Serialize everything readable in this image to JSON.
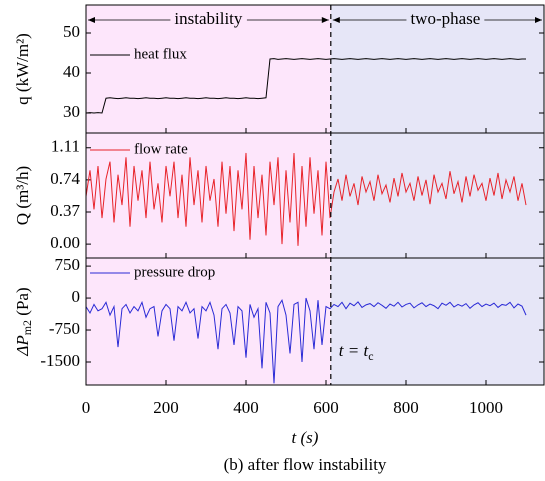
{
  "chart_data": [
    {
      "type": "line",
      "ylabel": "q (kW/m²)",
      "xlim": [
        0,
        1145
      ],
      "ylim": [
        25,
        57
      ],
      "yticks": [
        30,
        40,
        50
      ],
      "x": [
        0,
        10,
        20,
        30,
        40,
        50,
        60,
        70,
        80,
        90,
        100,
        110,
        120,
        130,
        140,
        150,
        160,
        170,
        180,
        190,
        200,
        210,
        220,
        230,
        240,
        250,
        260,
        270,
        280,
        290,
        300,
        310,
        320,
        330,
        340,
        350,
        360,
        370,
        380,
        390,
        400,
        410,
        420,
        430,
        440,
        450,
        460,
        470,
        480,
        490,
        500,
        510,
        520,
        530,
        540,
        550,
        560,
        570,
        580,
        590,
        600,
        610,
        620,
        630,
        640,
        650,
        660,
        670,
        680,
        690,
        700,
        710,
        720,
        730,
        740,
        750,
        760,
        770,
        780,
        790,
        800,
        810,
        820,
        830,
        840,
        850,
        860,
        870,
        880,
        890,
        900,
        910,
        920,
        930,
        940,
        950,
        960,
        970,
        980,
        990,
        1000,
        1010,
        1020,
        1030,
        1040,
        1050,
        1060,
        1070,
        1080,
        1090,
        1100
      ],
      "series": [
        {
          "name": "heat flux",
          "color": "#000000",
          "values": [
            30,
            30.1,
            30,
            30.1,
            30,
            33.7,
            33.8,
            33.7,
            33.6,
            33.7,
            33.8,
            33.7,
            33.7,
            33.6,
            33.7,
            33.8,
            33.7,
            33.7,
            33.6,
            33.7,
            33.8,
            33.7,
            33.7,
            33.6,
            33.7,
            33.8,
            33.7,
            33.7,
            33.6,
            33.7,
            33.8,
            33.7,
            33.7,
            33.6,
            33.7,
            33.8,
            33.7,
            33.7,
            33.6,
            33.7,
            33.8,
            33.7,
            33.7,
            33.6,
            33.7,
            33.8,
            43.5,
            43.6,
            43.4,
            43.5,
            43.6,
            43.5,
            43.4,
            43.5,
            43.6,
            43.5,
            43.4,
            43.5,
            43.6,
            43.5,
            43.4,
            43.5,
            43.6,
            43.5,
            43.4,
            43.5,
            43.6,
            43.5,
            43.4,
            43.5,
            43.6,
            43.5,
            43.4,
            43.5,
            43.6,
            43.5,
            43.4,
            43.5,
            43.6,
            43.5,
            43.4,
            43.5,
            43.6,
            43.5,
            43.4,
            43.5,
            43.6,
            43.5,
            43.4,
            43.5,
            43.6,
            43.5,
            43.4,
            43.5,
            43.6,
            43.5,
            43.4,
            43.5,
            43.6,
            43.5,
            43.4,
            43.5,
            43.6,
            43.5,
            43.4,
            43.5,
            43.6,
            43.5,
            43.4,
            43.5,
            43.5
          ]
        }
      ]
    },
    {
      "type": "line",
      "ylabel": "Q (m³/h)",
      "xlim": [
        0,
        1145
      ],
      "ylim": [
        -0.16,
        1.28
      ],
      "yticks": [
        {
          "value": 0,
          "label": "0.00"
        },
        0.37,
        0.74,
        1.11
      ],
      "x": [
        0,
        10,
        20,
        30,
        40,
        50,
        60,
        70,
        80,
        90,
        100,
        110,
        120,
        130,
        140,
        150,
        160,
        170,
        180,
        190,
        200,
        210,
        220,
        230,
        240,
        250,
        260,
        270,
        280,
        290,
        300,
        310,
        320,
        330,
        340,
        350,
        360,
        370,
        380,
        390,
        400,
        410,
        420,
        430,
        440,
        450,
        460,
        470,
        480,
        490,
        500,
        510,
        520,
        530,
        540,
        550,
        560,
        570,
        580,
        590,
        600,
        610,
        620,
        630,
        640,
        650,
        660,
        670,
        680,
        690,
        700,
        710,
        720,
        730,
        740,
        750,
        760,
        770,
        780,
        790,
        800,
        810,
        820,
        830,
        840,
        850,
        860,
        870,
        880,
        890,
        900,
        910,
        920,
        930,
        940,
        950,
        960,
        970,
        980,
        990,
        1000,
        1010,
        1020,
        1030,
        1040,
        1050,
        1060,
        1070,
        1080,
        1090,
        1100
      ],
      "series": [
        {
          "name": "flow rate",
          "color": "#e8232a",
          "values": [
            0.55,
            0.85,
            0.4,
            0.9,
            0.3,
            0.75,
            0.95,
            0.25,
            0.8,
            0.45,
            1.0,
            0.2,
            0.9,
            0.5,
            0.85,
            0.3,
            0.95,
            0.4,
            0.7,
            0.25,
            0.9,
            0.55,
            0.95,
            0.3,
            0.8,
            0.2,
            1.0,
            0.45,
            0.85,
            0.25,
            0.9,
            0.5,
            0.75,
            0.2,
            0.95,
            0.35,
            0.9,
            0.15,
            0.85,
            0.4,
            1.05,
            0.05,
            0.9,
            0.3,
            0.8,
            0.1,
            0.95,
            0.45,
            1.0,
            0.0,
            0.85,
            0.25,
            1.05,
            -0.02,
            0.9,
            0.2,
            1.0,
            0.35,
            0.85,
            0.1,
            0.95,
            0.3,
            0.6,
            0.75,
            0.5,
            0.8,
            0.55,
            0.7,
            0.45,
            0.78,
            0.6,
            0.72,
            0.5,
            0.8,
            0.58,
            0.68,
            0.48,
            0.76,
            0.55,
            0.82,
            0.6,
            0.7,
            0.5,
            0.78,
            0.56,
            0.74,
            0.46,
            0.8,
            0.6,
            0.7,
            0.52,
            0.84,
            0.58,
            0.72,
            0.48,
            0.78,
            0.55,
            0.8,
            0.62,
            0.7,
            0.5,
            0.76,
            0.56,
            0.82,
            0.52,
            0.74,
            0.6,
            0.78,
            0.5,
            0.7,
            0.45
          ]
        }
      ]
    },
    {
      "type": "line",
      "ylabel": {
        "main": "ΔP",
        "sub": "m2",
        "unit": " (Pa)"
      },
      "xlim": [
        0,
        1145
      ],
      "ylim": [
        -2040,
        940
      ],
      "yticks": [
        -1500,
        -750,
        0,
        750
      ],
      "xticks": [
        0,
        200,
        400,
        600,
        800,
        1000
      ],
      "xlabel": "t (s)",
      "x": [
        0,
        10,
        20,
        30,
        40,
        50,
        60,
        70,
        80,
        90,
        100,
        110,
        120,
        130,
        140,
        150,
        160,
        170,
        180,
        190,
        200,
        210,
        220,
        230,
        240,
        250,
        260,
        270,
        280,
        290,
        300,
        310,
        320,
        330,
        340,
        350,
        360,
        370,
        380,
        390,
        400,
        410,
        420,
        430,
        440,
        450,
        460,
        470,
        480,
        490,
        500,
        510,
        520,
        530,
        540,
        550,
        560,
        570,
        580,
        590,
        600,
        610,
        620,
        630,
        640,
        650,
        660,
        670,
        680,
        690,
        700,
        710,
        720,
        730,
        740,
        750,
        760,
        770,
        780,
        790,
        800,
        810,
        820,
        830,
        840,
        850,
        860,
        870,
        880,
        890,
        900,
        910,
        920,
        930,
        940,
        950,
        960,
        970,
        980,
        990,
        1000,
        1010,
        1020,
        1030,
        1040,
        1050,
        1060,
        1070,
        1080,
        1090,
        1100
      ],
      "series": [
        {
          "name": "pressure drop",
          "color": "#2a2ad6",
          "values": [
            -200,
            -350,
            -150,
            -300,
            -250,
            -100,
            -400,
            -200,
            -1150,
            -250,
            -150,
            -350,
            -200,
            -300,
            -100,
            -450,
            -250,
            -200,
            -900,
            -300,
            -150,
            -250,
            -1000,
            -200,
            -300,
            -100,
            -350,
            -250,
            -950,
            -200,
            -300,
            -100,
            -400,
            -1200,
            -250,
            -150,
            -350,
            -1100,
            -200,
            -300,
            -1400,
            -150,
            -450,
            -250,
            -1650,
            -100,
            -350,
            -2000,
            -200,
            -50,
            -400,
            -1300,
            -150,
            -100,
            -1500,
            0,
            -300,
            -1200,
            -50,
            -1100,
            -200,
            -250,
            -150,
            -200,
            -100,
            -250,
            -120,
            -180,
            -90,
            -220,
            -160,
            -130,
            -200,
            -110,
            -170,
            -240,
            -140,
            -190,
            -100,
            -210,
            -150,
            -120,
            -230,
            -160,
            -110,
            -200,
            -140,
            -180,
            -250,
            -120,
            -170,
            -100,
            -210,
            -150,
            -190,
            -130,
            -240,
            -160,
            -110,
            -200,
            -140,
            -180,
            -120,
            -220,
            -150,
            -170,
            -100,
            -230,
            -140,
            -190,
            -400
          ]
        }
      ]
    }
  ],
  "divider_x": 612,
  "regions": [
    "instability",
    "two-phase"
  ],
  "divider_label": {
    "main": "t = t",
    "sub": "c"
  },
  "caption": "(b) after flow instability"
}
